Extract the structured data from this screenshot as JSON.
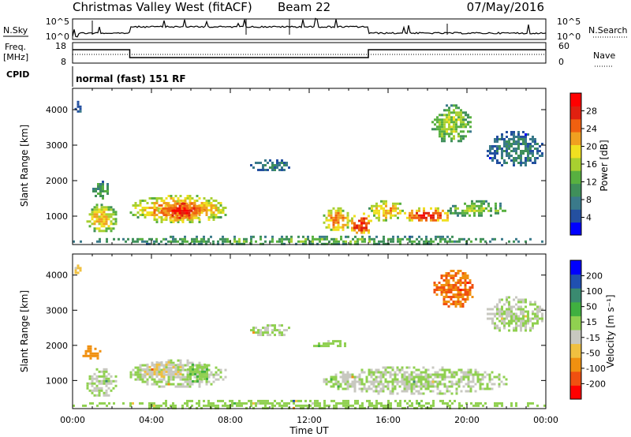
{
  "header": {
    "station": "Christmas Valley West (fitACF)",
    "beam": "Beam 22",
    "date": "07/May/2016"
  },
  "strip_nsky": {
    "label": "N.Sky",
    "left_ticks": [
      "10^5",
      "10^0"
    ],
    "right_ticks": [
      "10^5",
      "10^0"
    ],
    "right_label": "N.Search"
  },
  "strip_freq": {
    "label_line1": "Freq.",
    "label_line2": "[MHz]",
    "left_ticks": [
      "18",
      "8"
    ],
    "right_ticks": [
      "60",
      "0"
    ],
    "right_label": "Nave"
  },
  "strip_cpid": {
    "label": "CPID",
    "text": "normal (fast) 151 RF"
  },
  "chart_data": [
    {
      "type": "heatmap",
      "name": "power",
      "ylabel": "Slant Range [km]",
      "yticks": [
        1000,
        2000,
        3000,
        4000
      ],
      "ylim": [
        200,
        4600
      ],
      "xlim": [
        0,
        24
      ],
      "colorbar": {
        "label": "Power [dB]",
        "ticks": [
          4,
          8,
          12,
          16,
          20,
          24,
          28
        ],
        "range": [
          0,
          32
        ],
        "colors": [
          "#0000ff",
          "#2450a0",
          "#3a7a8a",
          "#3f8f5a",
          "#58b040",
          "#a8d030",
          "#f0e020",
          "#f0a020",
          "#f06010",
          "#e02010",
          "#ff0000"
        ]
      },
      "regions": [
        {
          "t": [
            0.7,
            2.2
          ],
          "r": [
            550,
            1350
          ],
          "level": 19
        },
        {
          "t": [
            1.0,
            1.8
          ],
          "r": [
            1500,
            2000
          ],
          "level": 11
        },
        {
          "t": [
            2.9,
            7.8
          ],
          "r": [
            850,
            1600
          ],
          "level": 22
        },
        {
          "t": [
            4.3,
            6.6
          ],
          "r": [
            900,
            1450
          ],
          "level": 27
        },
        {
          "t": [
            9.0,
            11.0
          ],
          "r": [
            2300,
            2600
          ],
          "level": 8
        },
        {
          "t": [
            12.7,
            14.0
          ],
          "r": [
            600,
            1250
          ],
          "level": 22
        },
        {
          "t": [
            14.0,
            15.1
          ],
          "r": [
            500,
            1100
          ],
          "level": 26
        },
        {
          "t": [
            15.0,
            16.8
          ],
          "r": [
            900,
            1450
          ],
          "level": 20
        },
        {
          "t": [
            16.8,
            19.2
          ],
          "r": [
            850,
            1250
          ],
          "level": 25
        },
        {
          "t": [
            19.0,
            21.9
          ],
          "r": [
            1000,
            1450
          ],
          "level": 14
        },
        {
          "t": [
            18.2,
            20.2
          ],
          "r": [
            3100,
            4150
          ],
          "level": 15
        },
        {
          "t": [
            21.0,
            23.8
          ],
          "r": [
            2400,
            3400
          ],
          "level": 8
        },
        {
          "t": [
            0.0,
            24.0
          ],
          "r": [
            240,
            450
          ],
          "level": 12
        },
        {
          "t": [
            0.1,
            0.4
          ],
          "r": [
            3950,
            4250
          ],
          "level": 6
        }
      ]
    },
    {
      "type": "heatmap",
      "name": "velocity",
      "ylabel": "Slant Range [km]",
      "yticks": [
        1000,
        2000,
        3000,
        4000
      ],
      "ylim": [
        200,
        4600
      ],
      "xlim": [
        0,
        24
      ],
      "xticks": [
        "00:00",
        "04:00",
        "08:00",
        "12:00",
        "16:00",
        "20:00",
        "00:00"
      ],
      "xlabel": "Time UT",
      "colorbar": {
        "label": "Velocity [m s⁻¹]",
        "ticks": [
          200,
          100,
          50,
          15,
          -15,
          -50,
          -100,
          -200
        ],
        "range": [
          -250,
          250
        ],
        "colors": [
          "#ff0000",
          "#f05010",
          "#f09010",
          "#f0c040",
          "#c8c8c0",
          "#90d050",
          "#40b040",
          "#3a8a70",
          "#2050b0",
          "#0000ff"
        ]
      },
      "regions": [
        {
          "t": [
            0.7,
            2.2
          ],
          "r": [
            550,
            1350
          ],
          "vel": 0
        },
        {
          "t": [
            0.5,
            1.4
          ],
          "r": [
            1600,
            2000
          ],
          "vel": -120
        },
        {
          "t": [
            2.9,
            7.8
          ],
          "r": [
            850,
            1600
          ],
          "vel": 0
        },
        {
          "t": [
            3.5,
            5.5
          ],
          "r": [
            1100,
            1550
          ],
          "vel": -45
        },
        {
          "t": [
            5.8,
            6.8
          ],
          "r": [
            950,
            1550
          ],
          "vel": 40
        },
        {
          "t": [
            9.0,
            11.0
          ],
          "r": [
            2300,
            2600
          ],
          "vel": 0
        },
        {
          "t": [
            12.7,
            22.0
          ],
          "r": [
            650,
            1400
          ],
          "vel": 0
        },
        {
          "t": [
            12.2,
            14.0
          ],
          "r": [
            1950,
            2150
          ],
          "vel": 40
        },
        {
          "t": [
            0.0,
            24.0
          ],
          "r": [
            240,
            450
          ],
          "vel": 30
        },
        {
          "t": [
            18.3,
            20.3
          ],
          "r": [
            3100,
            4150
          ],
          "vel": -150
        },
        {
          "t": [
            21.0,
            23.8
          ],
          "r": [
            2400,
            3400
          ],
          "vel": 0
        },
        {
          "t": [
            0.1,
            0.4
          ],
          "r": [
            4050,
            4300
          ],
          "vel": -60
        }
      ]
    }
  ]
}
